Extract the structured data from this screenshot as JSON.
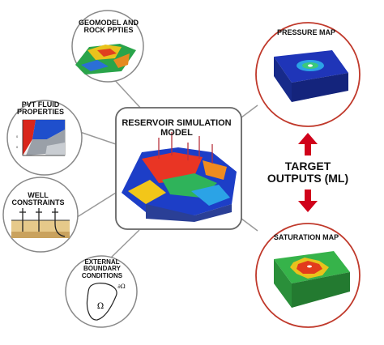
{
  "nodes": {
    "geomodel": "GEOMODEL AND ROCK PPTIES",
    "pvt": "PVT FLUID PROPERTIES",
    "well": "WELL CONSTRAINTS",
    "boundary": "EXTERNAL BOUNDARY CONDITIONS",
    "center": "RESERVOIR SIMULATION MODEL",
    "pressure": "PRESSURE MAP",
    "saturation": "SATURATION MAP"
  },
  "target_outputs": {
    "line1": "TARGET",
    "line2": "OUTPUTS (ML)"
  },
  "boundary_symbols": {
    "region": "Ω",
    "boundary": "∂Ω"
  },
  "colors": {
    "circle_border": "#888888",
    "output_border": "#c0392b",
    "arrow": "#d0021b",
    "pressure_blue": "#1f35b8",
    "saturation_green": "#36b34a",
    "saturation_red": "#e23b1c"
  }
}
